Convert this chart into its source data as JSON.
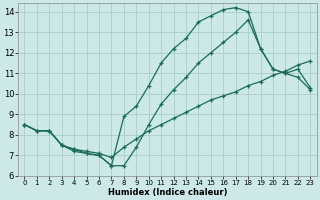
{
  "xlabel": "Humidex (Indice chaleur)",
  "bg_color": "#cde8e8",
  "grid_color": "#aacccc",
  "line_color": "#1a6b5a",
  "xlim": [
    -0.5,
    23.5
  ],
  "ylim": [
    6,
    14.4
  ],
  "xticks": [
    0,
    1,
    2,
    3,
    4,
    5,
    6,
    7,
    8,
    9,
    10,
    11,
    12,
    13,
    14,
    15,
    16,
    17,
    18,
    19,
    20,
    21,
    22,
    23
  ],
  "yticks": [
    6,
    7,
    8,
    9,
    10,
    11,
    12,
    13,
    14
  ],
  "series1_x": [
    0,
    1,
    2,
    3,
    4,
    5,
    6,
    7,
    8,
    9,
    10,
    11,
    12,
    13,
    14,
    15,
    16,
    17,
    18,
    19,
    20,
    21,
    22,
    23
  ],
  "series1_y": [
    8.5,
    8.2,
    8.2,
    7.5,
    7.3,
    7.2,
    7.1,
    6.9,
    7.4,
    7.8,
    8.2,
    8.5,
    8.8,
    9.1,
    9.4,
    9.7,
    9.9,
    10.1,
    10.4,
    10.6,
    10.9,
    11.1,
    11.4,
    11.6
  ],
  "series2_x": [
    0,
    1,
    2,
    3,
    4,
    5,
    6,
    7,
    8,
    9,
    10,
    11,
    12,
    13,
    14,
    15,
    16,
    17,
    18,
    19,
    20,
    21,
    22,
    23
  ],
  "series2_y": [
    8.5,
    8.2,
    8.2,
    7.5,
    7.3,
    7.1,
    7.0,
    6.5,
    8.9,
    9.4,
    10.4,
    11.5,
    12.2,
    12.7,
    13.5,
    13.8,
    14.1,
    14.2,
    14.0,
    12.2,
    11.2,
    11.0,
    11.2,
    10.3
  ],
  "series3_x": [
    0,
    1,
    2,
    3,
    4,
    5,
    6,
    7,
    8,
    9,
    10,
    11,
    12,
    13,
    14,
    15,
    16,
    17,
    18,
    19,
    20,
    21,
    22,
    23
  ],
  "series3_y": [
    8.5,
    8.2,
    8.2,
    7.5,
    7.2,
    7.1,
    7.0,
    6.5,
    6.5,
    7.4,
    8.5,
    9.5,
    10.2,
    10.8,
    11.5,
    12.0,
    12.5,
    13.0,
    13.6,
    12.2,
    11.2,
    11.0,
    10.8,
    10.2
  ]
}
